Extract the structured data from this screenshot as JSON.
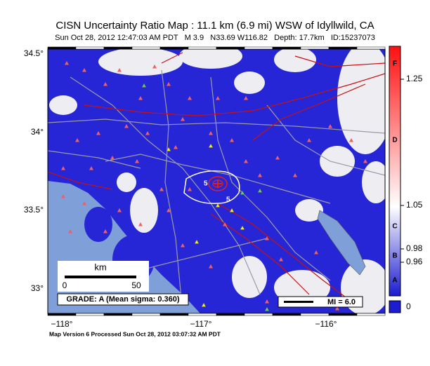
{
  "header": {
    "title": "CISN Uncertainty Ratio Map : 11.1 km (6.9 mi) WSW of Idyllwild, CA",
    "subtitle": "Sun Oct 28, 2012 12:47:03 AM PDT   M 3.9   N33.69 W116.82   Depth: 17.7km   ID:15237073"
  },
  "map": {
    "lat_labels": [
      "34.5°",
      "34°",
      "33.5°",
      "33°"
    ],
    "lon_labels": [
      "−118°",
      "−117°",
      "−116°"
    ],
    "scale_bar": {
      "unit": "km",
      "start": "0",
      "end": "50"
    },
    "grade": "GRADE: A (Mean sigma: 0.360)",
    "mi_legend": "MI = 6.0",
    "contour_labels": [
      "5",
      "5"
    ]
  },
  "colorbar": {
    "grades": [
      "F",
      "D",
      "C",
      "B",
      "A"
    ],
    "ticks": [
      "1.25",
      "1.05",
      "0.98",
      "0.96",
      "0"
    ]
  },
  "footer": "Map Version 6 Processed Sun Oct 28, 2012 03:07:32 AM PDT"
}
